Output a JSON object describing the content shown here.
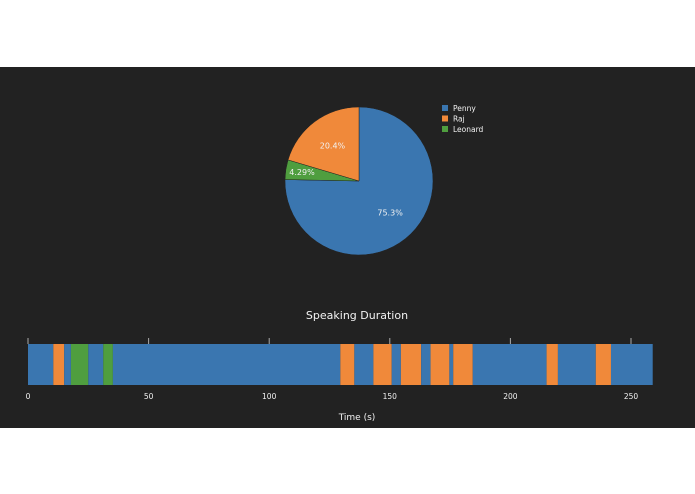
{
  "chart_data": [
    {
      "type": "pie",
      "labels": [
        "Penny",
        "Raj",
        "Leonard"
      ],
      "values": [
        75.3,
        20.4,
        4.29
      ],
      "text_labels": [
        "75.3%",
        "20.4%",
        "4.29%"
      ],
      "colors": [
        "#3a76b0",
        "#f0893a",
        "#4f9e3f"
      ],
      "legend": "top-right"
    },
    {
      "type": "bar",
      "orientation": "horizontal-timeline",
      "title": "Speaking Duration",
      "xlabel": "Time (s)",
      "xlim": [
        0,
        259
      ],
      "xticks": [
        0,
        50,
        100,
        150,
        200,
        250
      ],
      "segments": [
        {
          "speaker": "Penny",
          "start": 0,
          "end": 10.5
        },
        {
          "speaker": "Raj",
          "start": 10.5,
          "end": 15
        },
        {
          "speaker": "Penny",
          "start": 15,
          "end": 17.8
        },
        {
          "speaker": "Leonard",
          "start": 17.8,
          "end": 25
        },
        {
          "speaker": "Penny",
          "start": 25,
          "end": 31.2
        },
        {
          "speaker": "Leonard",
          "start": 31.2,
          "end": 35.2
        },
        {
          "speaker": "Penny",
          "start": 35.2,
          "end": 129.5
        },
        {
          "speaker": "Raj",
          "start": 129.5,
          "end": 135.3
        },
        {
          "speaker": "Penny",
          "start": 135.3,
          "end": 143.2
        },
        {
          "speaker": "Raj",
          "start": 143.2,
          "end": 150.8
        },
        {
          "speaker": "Penny",
          "start": 150.8,
          "end": 154.6
        },
        {
          "speaker": "Raj",
          "start": 154.6,
          "end": 163
        },
        {
          "speaker": "Penny",
          "start": 163,
          "end": 166.9
        },
        {
          "speaker": "Raj",
          "start": 166.9,
          "end": 174.7
        },
        {
          "speaker": "Penny",
          "start": 174.7,
          "end": 176.3
        },
        {
          "speaker": "Raj",
          "start": 176.3,
          "end": 184.4
        },
        {
          "speaker": "Penny",
          "start": 184.4,
          "end": 215
        },
        {
          "speaker": "Raj",
          "start": 215,
          "end": 219.7
        },
        {
          "speaker": "Penny",
          "start": 219.7,
          "end": 235.4
        },
        {
          "speaker": "Raj",
          "start": 235.4,
          "end": 241.7
        },
        {
          "speaker": "Penny",
          "start": 241.7,
          "end": 259
        }
      ],
      "colors": {
        "Penny": "#3a76b0",
        "Raj": "#f0893a",
        "Leonard": "#4f9e3f"
      }
    }
  ]
}
